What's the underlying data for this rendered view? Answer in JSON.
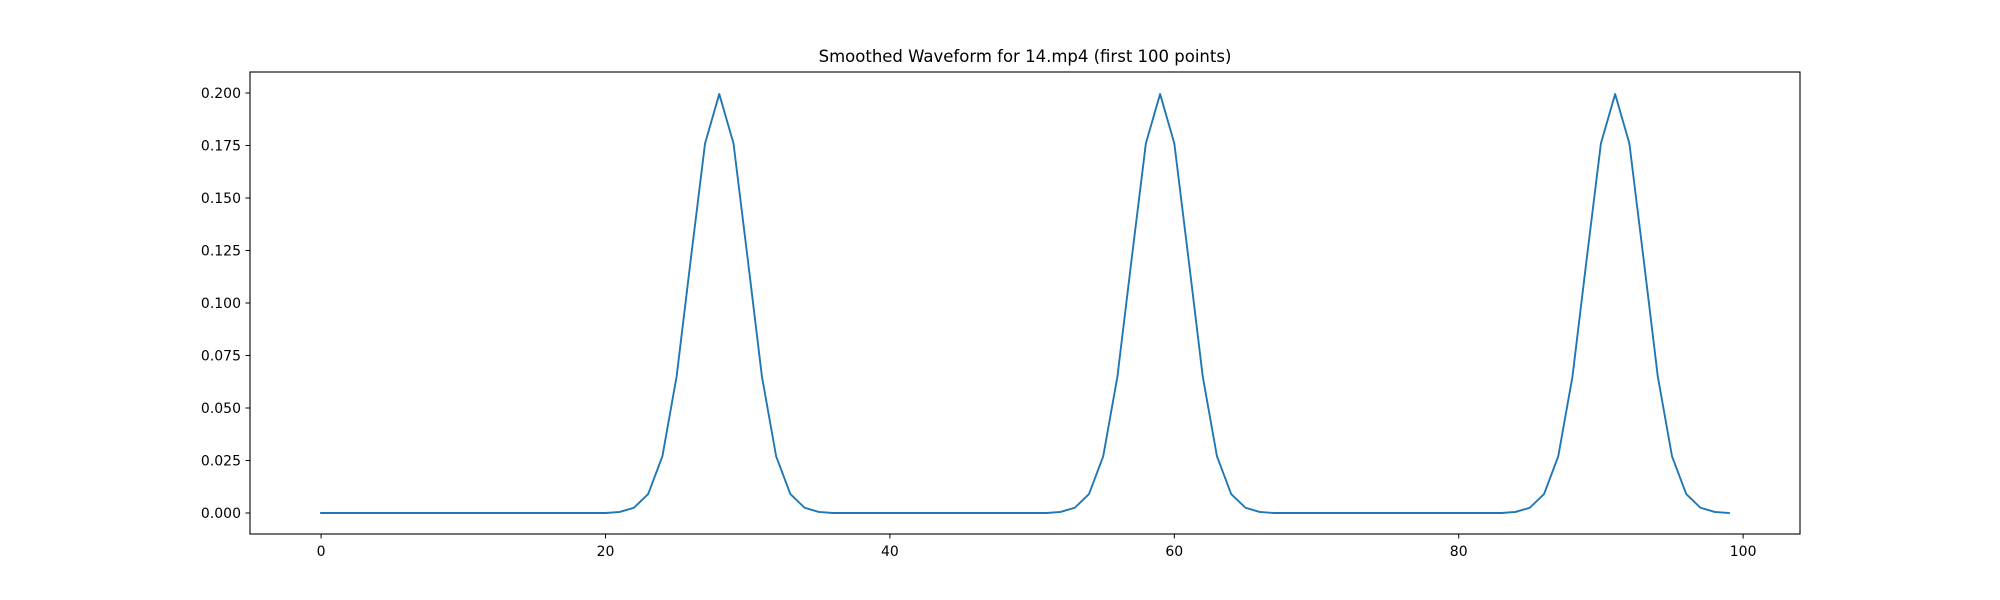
{
  "chart_data": {
    "type": "line",
    "title": "Smoothed Waveform for 14.mp4 (first 100 points)",
    "xlabel": "",
    "ylabel": "",
    "xlim": [
      -5,
      104
    ],
    "ylim": [
      -0.01,
      0.21
    ],
    "grid": false,
    "legend": "none",
    "x_ticks": [
      0,
      20,
      40,
      60,
      80,
      100
    ],
    "x_tick_labels": [
      "0",
      "20",
      "40",
      "60",
      "80",
      "100"
    ],
    "y_ticks": [
      0.0,
      0.025,
      0.05,
      0.075,
      0.1,
      0.125,
      0.15,
      0.175,
      0.2
    ],
    "y_tick_labels": [
      "0.000",
      "0.025",
      "0.050",
      "0.075",
      "0.100",
      "0.125",
      "0.150",
      "0.175",
      "0.200"
    ],
    "series": [
      {
        "color": "#1f77b4",
        "x": [
          0,
          1,
          2,
          3,
          4,
          5,
          6,
          7,
          8,
          9,
          10,
          11,
          12,
          13,
          14,
          15,
          16,
          17,
          18,
          19,
          20,
          21,
          22,
          23,
          24,
          25,
          26,
          27,
          28,
          29,
          30,
          31,
          32,
          33,
          34,
          35,
          36,
          37,
          38,
          39,
          40,
          41,
          42,
          43,
          44,
          45,
          46,
          47,
          48,
          49,
          50,
          51,
          52,
          53,
          54,
          55,
          56,
          57,
          58,
          59,
          60,
          61,
          62,
          63,
          64,
          65,
          66,
          67,
          68,
          69,
          70,
          71,
          72,
          73,
          74,
          75,
          76,
          77,
          78,
          79,
          80,
          81,
          82,
          83,
          84,
          85,
          86,
          87,
          88,
          89,
          90,
          91,
          92,
          93,
          94,
          95,
          96,
          97,
          98,
          99
        ],
        "values": [
          0,
          0,
          0,
          0,
          0,
          0,
          0,
          0,
          0,
          0,
          0,
          0,
          0,
          0,
          0,
          0,
          0,
          0,
          0,
          0,
          0,
          0.0005,
          0.0025,
          0.009,
          0.027,
          0.065,
          0.121,
          0.176,
          0.1995,
          0.176,
          0.121,
          0.065,
          0.027,
          0.009,
          0.0025,
          0.0005,
          0,
          0,
          0,
          0,
          0,
          0,
          0,
          0,
          0,
          0,
          0,
          0,
          0,
          0,
          0,
          0,
          0.0005,
          0.0025,
          0.009,
          0.027,
          0.065,
          0.121,
          0.176,
          0.1995,
          0.176,
          0.121,
          0.065,
          0.027,
          0.009,
          0.0025,
          0.0005,
          0,
          0,
          0,
          0,
          0,
          0,
          0,
          0,
          0,
          0,
          0,
          0,
          0,
          0,
          0,
          0,
          0,
          0.0005,
          0.0025,
          0.009,
          0.027,
          0.065,
          0.121,
          0.176,
          0.1995,
          0.176,
          0.121,
          0.065,
          0.027,
          0.009,
          0.0025,
          0.0005,
          0
        ]
      }
    ]
  }
}
